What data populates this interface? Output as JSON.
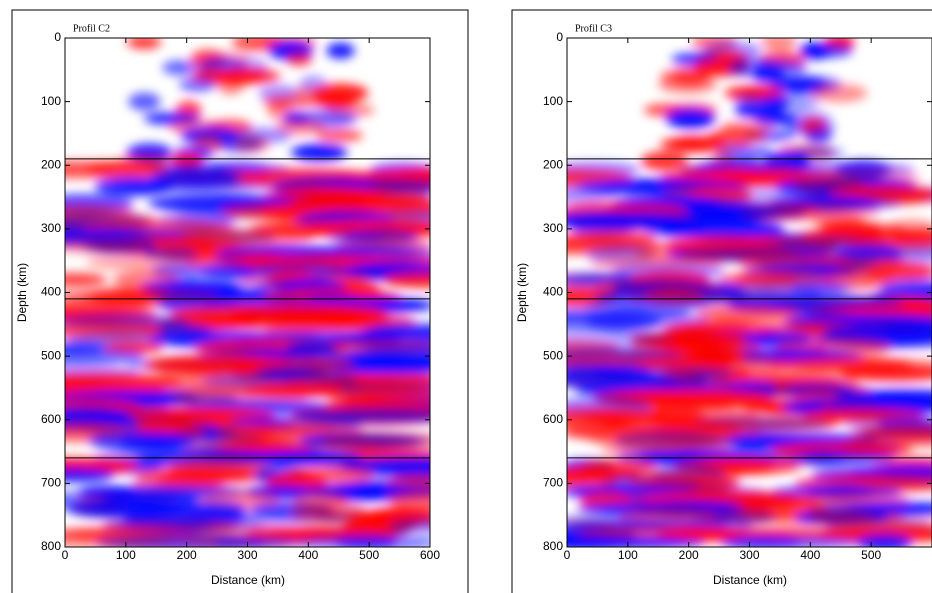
{
  "chart_data": [
    {
      "type": "image",
      "title": "Profil C2",
      "xlabel": "Distance (km)",
      "ylabel": "Depth (km)",
      "xlim": [
        0,
        600
      ],
      "ylim": [
        0,
        800
      ],
      "xticks": [
        0,
        100,
        200,
        300,
        400,
        500,
        600
      ],
      "yticks": [
        0,
        100,
        200,
        300,
        400,
        500,
        600,
        700,
        800
      ],
      "lines": [
        190,
        410,
        660
      ]
    },
    {
      "type": "image",
      "title": "Profil C3",
      "xlabel": "Distance (km)",
      "ylabel": "Depth (km)",
      "xlim": [
        0,
        600
      ],
      "ylim": [
        0,
        800
      ],
      "xticks": [
        0,
        100,
        200,
        300,
        400,
        500
      ],
      "yticks": [
        0,
        100,
        200,
        300,
        400,
        500,
        600,
        700,
        800
      ],
      "lines": [
        190,
        410,
        660
      ]
    }
  ]
}
